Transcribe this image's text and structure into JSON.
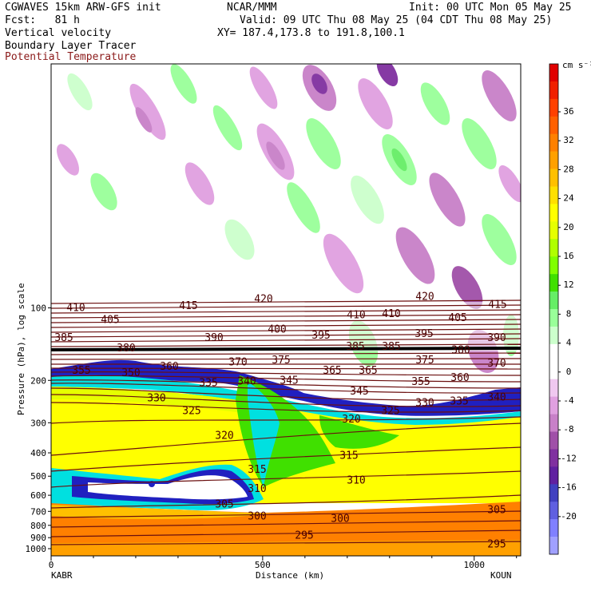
{
  "header": {
    "line1_left": "CGWAVES 15km ARW-GFS init",
    "line1_center": "NCAR/MMM",
    "line1_right": "Init: 00 UTC Mon 05 May 25",
    "fcst": "Fcst:   81 h",
    "valid": "Valid: 09 UTC Thu 08 May 25 (04 CDT Thu 08 May 25)",
    "field1": "Vertical velocity",
    "field2": "Boundary Layer Tracer",
    "field3": "Potential Temperature",
    "xy": "XY= 187.4,173.8 to 191.8,100.1",
    "field3_color": "#8b1a1a"
  },
  "chart_data": {
    "type": "heatmap",
    "xlabel": "Distance (km)",
    "ylabel": "Pressure (hPa), log scale",
    "xlim": [
      0,
      1110
    ],
    "x_ticks": [
      0,
      500,
      1000
    ],
    "y_scale": "log",
    "y_ticks": [
      100,
      200,
      300,
      400,
      500,
      600,
      700,
      800,
      900,
      1000
    ],
    "endpoint_left": "KABR",
    "endpoint_right": "KOUN",
    "colorbar": {
      "unit": "cm s⁻¹",
      "labels": [
        "36",
        "32",
        "28",
        "24",
        "20",
        "16",
        "12",
        "8",
        "4",
        "0",
        "-4",
        "-8",
        "-12",
        "-16",
        "-20"
      ],
      "colors": [
        "#e00000",
        "#f02000",
        "#ff4000",
        "#ff6000",
        "#ff8000",
        "#ffa000",
        "#ffc000",
        "#ffe000",
        "#ffff00",
        "#e6ff00",
        "#b0ff00",
        "#80ff00",
        "#40e000",
        "#66ee66",
        "#99ff99",
        "#ccffcc",
        "#ffffff",
        "#ffffff",
        "#f0c8f0",
        "#e0a0e0",
        "#c880c8",
        "#a050a8",
        "#8030a0",
        "#6020a0",
        "#4040c0",
        "#6060e0",
        "#8080ff",
        "#a0a0ff"
      ]
    },
    "theta_labels": [
      {
        "v": "410",
        "x": 95,
        "p": 100
      },
      {
        "v": "405",
        "x": 138,
        "p": 112
      },
      {
        "v": "415",
        "x": 236,
        "p": 98
      },
      {
        "v": "420",
        "x": 330,
        "p": 92
      },
      {
        "v": "420",
        "x": 532,
        "p": 90
      },
      {
        "v": "415",
        "x": 623,
        "p": 97
      },
      {
        "v": "410",
        "x": 446,
        "p": 107
      },
      {
        "v": "410",
        "x": 490,
        "p": 106
      },
      {
        "v": "405",
        "x": 573,
        "p": 110
      },
      {
        "v": "400",
        "x": 347,
        "p": 123
      },
      {
        "v": "395",
        "x": 402,
        "p": 130
      },
      {
        "v": "395",
        "x": 531,
        "p": 128
      },
      {
        "v": "390",
        "x": 268,
        "p": 133
      },
      {
        "v": "390",
        "x": 622,
        "p": 133
      },
      {
        "v": "385",
        "x": 80,
        "p": 133
      },
      {
        "v": "385",
        "x": 445,
        "p": 145
      },
      {
        "v": "385",
        "x": 490,
        "p": 145
      },
      {
        "v": "380",
        "x": 158,
        "p": 147
      },
      {
        "v": "380",
        "x": 577,
        "p": 150
      },
      {
        "v": "375",
        "x": 352,
        "p": 165
      },
      {
        "v": "375",
        "x": 532,
        "p": 165
      },
      {
        "v": "370",
        "x": 298,
        "p": 168
      },
      {
        "v": "370",
        "x": 622,
        "p": 170
      },
      {
        "v": "365",
        "x": 416,
        "p": 182
      },
      {
        "v": "365",
        "x": 461,
        "p": 182
      },
      {
        "v": "360",
        "x": 212,
        "p": 175
      },
      {
        "v": "360",
        "x": 576,
        "p": 195
      },
      {
        "v": "355",
        "x": 102,
        "p": 182
      },
      {
        "v": "355",
        "x": 527,
        "p": 203
      },
      {
        "v": "350",
        "x": 164,
        "p": 186
      },
      {
        "v": "345",
        "x": 362,
        "p": 200
      },
      {
        "v": "345",
        "x": 450,
        "p": 222
      },
      {
        "v": "340",
        "x": 622,
        "p": 235
      },
      {
        "v": "340",
        "x": 309,
        "p": 202
      },
      {
        "v": "335",
        "x": 261,
        "p": 205
      },
      {
        "v": "335",
        "x": 575,
        "p": 244
      },
      {
        "v": "330",
        "x": 196,
        "p": 237
      },
      {
        "v": "330",
        "x": 532,
        "p": 248
      },
      {
        "v": "325",
        "x": 240,
        "p": 268
      },
      {
        "v": "325",
        "x": 489,
        "p": 268
      },
      {
        "v": "320",
        "x": 281,
        "p": 340
      },
      {
        "v": "320",
        "x": 440,
        "p": 290
      },
      {
        "v": "315",
        "x": 322,
        "p": 470
      },
      {
        "v": "315",
        "x": 437,
        "p": 410
      },
      {
        "v": "310",
        "x": 322,
        "p": 565
      },
      {
        "v": "310",
        "x": 446,
        "p": 520
      },
      {
        "v": "305",
        "x": 281,
        "p": 655
      },
      {
        "v": "305",
        "x": 622,
        "p": 690
      },
      {
        "v": "300",
        "x": 322,
        "p": 735
      },
      {
        "v": "300",
        "x": 426,
        "p": 750
      },
      {
        "v": "295",
        "x": 381,
        "p": 880
      },
      {
        "v": "295",
        "x": 622,
        "p": 960
      }
    ]
  }
}
